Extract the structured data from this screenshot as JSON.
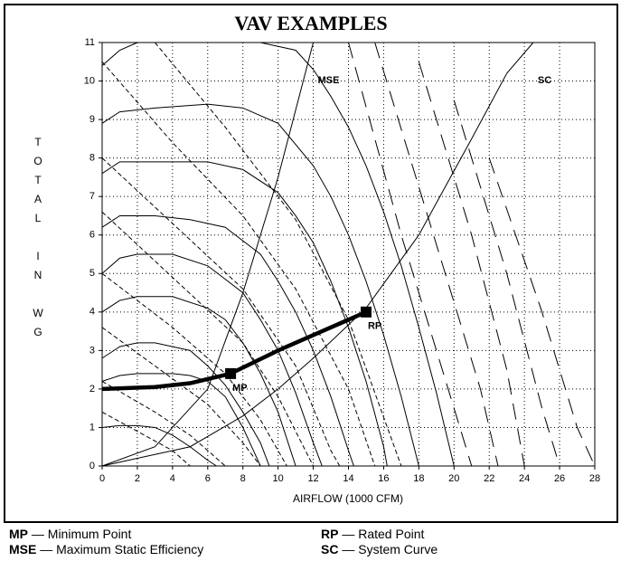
{
  "chart_data": {
    "type": "line",
    "title": "VAV EXAMPLES",
    "x_label": "AIRFLOW (1000 CFM)",
    "y_label": "TOTAL IN WG",
    "xlim": [
      0,
      28
    ],
    "xticks": [
      0,
      2,
      4,
      6,
      8,
      10,
      12,
      14,
      16,
      18,
      20,
      22,
      24,
      26,
      28
    ],
    "ylim": [
      0,
      11
    ],
    "yticks": [
      0,
      1,
      2,
      3,
      4,
      5,
      6,
      7,
      8,
      9,
      10,
      11
    ],
    "grid": true,
    "color": "#000000",
    "series": [
      {
        "style": "solid",
        "x": [
          0,
          1,
          2,
          3,
          4,
          5,
          6,
          6.5
        ],
        "values": [
          1.0,
          1.05,
          1.05,
          1.0,
          0.8,
          0.5,
          0.15,
          0
        ]
      },
      {
        "style": "solid",
        "x": [
          0,
          1,
          2,
          3,
          4,
          5,
          6,
          7,
          8,
          9
        ],
        "values": [
          2.2,
          2.35,
          2.4,
          2.4,
          2.4,
          2.35,
          2.2,
          1.8,
          1.0,
          0
        ]
      },
      {
        "style": "solid",
        "x": [
          0,
          1,
          2,
          3,
          4,
          5,
          6,
          7,
          8,
          9,
          9.5
        ],
        "values": [
          2.8,
          3.1,
          3.2,
          3.2,
          3.1,
          3.0,
          2.6,
          2.1,
          1.4,
          0.6,
          0
        ]
      },
      {
        "style": "solid",
        "x": [
          0,
          1,
          2,
          4,
          6,
          7,
          8,
          9,
          10,
          11
        ],
        "values": [
          4.0,
          4.3,
          4.4,
          4.4,
          4.1,
          3.8,
          3.2,
          2.4,
          1.4,
          0
        ]
      },
      {
        "style": "solid",
        "x": [
          0,
          1,
          2,
          4,
          6,
          8,
          9,
          10,
          11,
          12,
          12.5
        ],
        "values": [
          5.0,
          5.4,
          5.5,
          5.5,
          5.2,
          4.5,
          3.8,
          3.0,
          1.9,
          0.6,
          0
        ]
      },
      {
        "style": "solid",
        "x": [
          0,
          1,
          3,
          5,
          7,
          9,
          10,
          11,
          12,
          13,
          14,
          14.3
        ],
        "values": [
          6.2,
          6.5,
          6.5,
          6.4,
          6.2,
          5.5,
          4.8,
          4.0,
          3.0,
          1.8,
          0.4,
          0
        ]
      },
      {
        "style": "solid",
        "x": [
          0,
          1,
          3,
          6,
          8,
          10,
          11,
          12,
          13,
          14,
          15,
          16,
          16.2
        ],
        "values": [
          7.6,
          7.9,
          7.9,
          7.9,
          7.7,
          7.1,
          6.5,
          5.8,
          4.8,
          3.6,
          2.2,
          0.5,
          0
        ]
      },
      {
        "style": "solid",
        "x": [
          0,
          1,
          3,
          6,
          8,
          10,
          12,
          13,
          14,
          15,
          16,
          17,
          18
        ],
        "values": [
          8.9,
          9.2,
          9.3,
          9.4,
          9.3,
          8.9,
          7.8,
          7.0,
          6.0,
          4.8,
          3.4,
          1.8,
          0
        ]
      },
      {
        "style": "solid",
        "x": [
          0,
          1,
          2
        ],
        "values": [
          10.4,
          10.8,
          11.0
        ]
      },
      {
        "style": "solid",
        "x": [
          4,
          6,
          9,
          11,
          12,
          13,
          14,
          15,
          16,
          17,
          18,
          19,
          20
        ],
        "values": [
          11,
          11,
          11,
          10.8,
          10.3,
          9.6,
          8.8,
          7.8,
          6.6,
          5.2,
          3.6,
          1.9,
          0
        ]
      },
      {
        "style": "dash",
        "x": [
          0,
          2,
          4,
          5
        ],
        "values": [
          1.4,
          0.9,
          0.4,
          0
        ]
      },
      {
        "style": "dash",
        "x": [
          0,
          3,
          5,
          7
        ],
        "values": [
          2.2,
          1.4,
          0.8,
          0
        ]
      },
      {
        "style": "dash",
        "x": [
          0,
          3,
          6,
          8,
          9
        ],
        "values": [
          3.6,
          2.6,
          1.6,
          0.6,
          0
        ]
      },
      {
        "style": "dash",
        "x": [
          0,
          4,
          7,
          9,
          10.5
        ],
        "values": [
          5.0,
          3.6,
          2.4,
          1.2,
          0
        ]
      },
      {
        "style": "dash",
        "x": [
          0,
          4,
          8,
          10,
          12
        ],
        "values": [
          6.6,
          4.9,
          3.2,
          1.8,
          0
        ]
      },
      {
        "style": "dash",
        "x": [
          0,
          4,
          8,
          11,
          13,
          13.5
        ],
        "values": [
          8.0,
          6.3,
          4.6,
          2.6,
          0.4,
          0
        ]
      },
      {
        "style": "dash",
        "x": [
          0,
          4,
          8,
          11,
          14,
          15.5
        ],
        "values": [
          10.5,
          8.4,
          6.5,
          4.6,
          2.0,
          0
        ]
      },
      {
        "style": "dash",
        "x": [
          3,
          7,
          11,
          14,
          17
        ],
        "values": [
          11,
          8.8,
          6.4,
          3.8,
          0
        ]
      },
      {
        "style": "longdash",
        "x": [
          14,
          17,
          20,
          21
        ],
        "values": [
          11,
          6,
          1.5,
          0
        ]
      },
      {
        "style": "longdash",
        "x": [
          15.5,
          18.5,
          21.5,
          22.5
        ],
        "values": [
          11,
          6.5,
          2,
          0
        ]
      },
      {
        "style": "longdash",
        "x": [
          18,
          21,
          23,
          24
        ],
        "values": [
          10.5,
          6,
          2.5,
          0
        ]
      },
      {
        "style": "longdash",
        "x": [
          20,
          23,
          25,
          26
        ],
        "values": [
          9.5,
          5,
          1.5,
          0
        ]
      },
      {
        "style": "longdash",
        "x": [
          22,
          25,
          27,
          28
        ],
        "values": [
          8,
          4,
          1,
          0
        ]
      },
      {
        "name": "MSE",
        "style": "solid",
        "x": [
          0,
          3,
          6,
          8,
          10,
          12
        ],
        "values": [
          0,
          0.5,
          2.0,
          4.5,
          7.5,
          11
        ]
      },
      {
        "name": "SC",
        "style": "solid",
        "x": [
          0,
          5,
          8,
          10,
          12,
          15,
          18,
          21,
          23,
          24.5
        ],
        "values": [
          0,
          0.5,
          1.3,
          2.0,
          2.8,
          4.1,
          6.0,
          8.5,
          10.2,
          11
        ]
      },
      {
        "style": "thick",
        "x": [
          0,
          3,
          5,
          7.3,
          10,
          12.5,
          15
        ],
        "values": [
          2.0,
          2.05,
          2.15,
          2.4,
          3.0,
          3.5,
          4.0
        ]
      }
    ],
    "points": [
      {
        "label": "MP",
        "x": 7.3,
        "y": 2.4
      },
      {
        "label": "RP",
        "x": 15,
        "y": 4.0
      }
    ],
    "legend": [
      {
        "abbr": "MP",
        "text": "— Minimum Point"
      },
      {
        "abbr": "RP",
        "text": "— Rated Point"
      },
      {
        "abbr": "MSE",
        "text": "— Maximum Static Efficiency"
      },
      {
        "abbr": "SC",
        "text": "— System Curve"
      }
    ]
  }
}
